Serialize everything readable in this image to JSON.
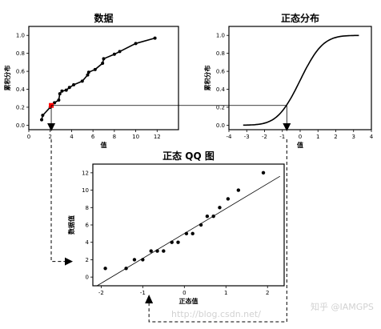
{
  "chart_data": [
    {
      "type": "line",
      "title": "数据",
      "xlabel": "值",
      "ylabel": "累积分布",
      "xlim": [
        0,
        14
      ],
      "ylim": [
        -0.05,
        1.1
      ],
      "xticks": [
        0,
        2,
        4,
        6,
        8,
        10,
        12
      ],
      "yticks": [
        0.0,
        0.2,
        0.4,
        0.6,
        0.8,
        1.0
      ],
      "ytick_labels": [
        "0.0",
        "0.2",
        "0.4",
        "0.6",
        "0.8",
        "1.0"
      ],
      "x": [
        1.2,
        1.3,
        2.0,
        2.1,
        2.4,
        2.8,
        2.9,
        3.1,
        3.5,
        3.8,
        4.2,
        5.0,
        5.5,
        5.6,
        6.2,
        6.9,
        7.0,
        8.0,
        8.5,
        10.0,
        11.8
      ],
      "y": [
        0.06,
        0.11,
        0.2,
        0.22,
        0.25,
        0.28,
        0.35,
        0.38,
        0.39,
        0.42,
        0.45,
        0.49,
        0.56,
        0.59,
        0.62,
        0.69,
        0.74,
        0.79,
        0.82,
        0.91,
        0.97
      ],
      "highlight_point": {
        "x": 2.1,
        "y": 0.22,
        "color": "#ff0000"
      }
    },
    {
      "type": "line",
      "title": "正态分布",
      "xlabel": "值",
      "ylabel": "累积分布",
      "xlim": [
        -4,
        4
      ],
      "ylim": [
        -0.05,
        1.1
      ],
      "xticks": [
        -4,
        -3,
        -2,
        -1,
        0,
        1,
        2,
        3,
        4
      ],
      "yticks": [
        0.0,
        0.2,
        0.4,
        0.6,
        0.8,
        1.0
      ],
      "ytick_labels": [
        "0.0",
        "0.2",
        "0.4",
        "0.6",
        "0.8",
        "1.0"
      ],
      "curve": "standard-normal-cdf",
      "curve_range": [
        -3.2,
        3.3
      ],
      "marker_x": -0.75
    },
    {
      "type": "scatter",
      "title": "正态 QQ 图",
      "xlabel": "正态值",
      "ylabel": "数据值",
      "xlim": [
        -2.2,
        2.4
      ],
      "ylim": [
        -1,
        13
      ],
      "xticks": [
        -2,
        -1,
        0,
        1,
        2
      ],
      "yticks": [
        0,
        2,
        4,
        6,
        8,
        10,
        12
      ],
      "x": [
        -1.9,
        -1.4,
        -1.2,
        -1.0,
        -0.8,
        -0.65,
        -0.5,
        -0.3,
        -0.15,
        0.05,
        0.2,
        0.4,
        0.55,
        0.7,
        0.85,
        1.05,
        1.3,
        1.9
      ],
      "y": [
        1.0,
        1.0,
        2.0,
        2.0,
        3.0,
        3.0,
        3.0,
        4.0,
        4.0,
        5.0,
        5.0,
        6.0,
        7.0,
        7.0,
        8.0,
        9.0,
        10.0,
        12.0
      ],
      "reference_line": {
        "x": [
          -2.1,
          2.3
        ],
        "y": [
          -1.0,
          11.6
        ]
      },
      "marker_x": -0.85
    }
  ],
  "watermark": "知乎 @IAMGPS",
  "watermark_faint": "http://blog.csdn.net/"
}
